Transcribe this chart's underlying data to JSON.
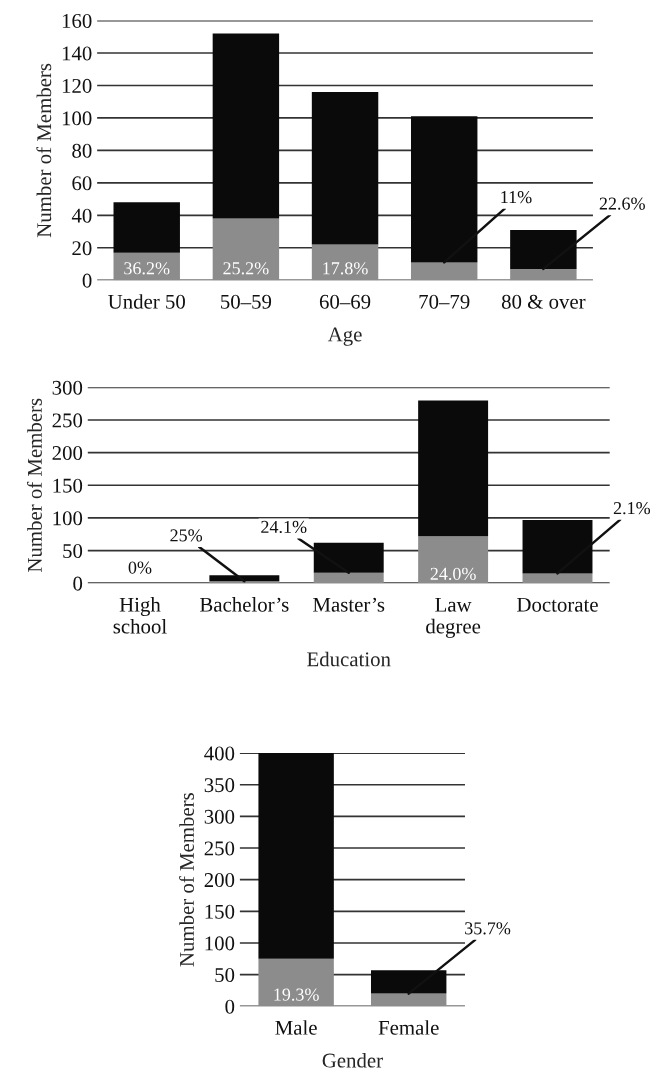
{
  "chart_data": [
    {
      "type": "bar",
      "stacked": true,
      "xlabel": "Age",
      "ylabel": "Number of Members",
      "categories": [
        "Under 50",
        "50–59",
        "60–69",
        "70–79",
        "80 & over"
      ],
      "series": [
        {
          "color": "#8c8c8c",
          "values": [
            17,
            38,
            22,
            11,
            7
          ]
        },
        {
          "color": "#0a0a0a",
          "values": [
            31,
            114,
            94,
            90,
            24
          ]
        }
      ],
      "annotations": [
        {
          "text": "36.2%",
          "x": "Under 50",
          "y": 17
        },
        {
          "text": "25.2%",
          "x": "50–59",
          "y": 38
        },
        {
          "text": "17.8%",
          "x": "60–69",
          "y": 22
        },
        {
          "text": "11%",
          "x": "70–79",
          "y": 11
        },
        {
          "text": "22.6%",
          "x": "80 & over",
          "y": 7
        }
      ],
      "ylim": [
        0,
        160
      ],
      "yticks": [
        0,
        20,
        40,
        60,
        80,
        100,
        120,
        140,
        160
      ],
      "grid": "y",
      "legend": false
    },
    {
      "type": "bar",
      "stacked": true,
      "xlabel": "Education",
      "ylabel": "Number of Members",
      "categories": [
        "High\nschool",
        "Bachelor’s",
        "Master’s",
        "Law\ndegree",
        "Doctorate"
      ],
      "series": [
        {
          "color": "#8c8c8c",
          "values": [
            0,
            3,
            16,
            72,
            15
          ]
        },
        {
          "color": "#0a0a0a",
          "values": [
            0,
            9,
            46,
            208,
            82
          ]
        }
      ],
      "annotations": [
        {
          "text": "0%",
          "x": "High\nschool",
          "y": 0
        },
        {
          "text": "25%",
          "x": "Bachelor’s",
          "y": 3
        },
        {
          "text": "24.1%",
          "x": "Master’s",
          "y": 16
        },
        {
          "text": "24.0%",
          "x": "Law\ndegree",
          "y": 72
        },
        {
          "text": "2.1%",
          "x": "Doctorate",
          "y": 15
        }
      ],
      "ylim": [
        0,
        300
      ],
      "yticks": [
        0,
        50,
        100,
        150,
        200,
        250,
        300
      ],
      "grid": "y",
      "legend": false
    },
    {
      "type": "bar",
      "stacked": true,
      "xlabel": "Gender",
      "ylabel": "Number of Members",
      "categories": [
        "Male",
        "Female"
      ],
      "series": [
        {
          "color": "#8c8c8c",
          "values": [
            75,
            20
          ]
        },
        {
          "color": "#0a0a0a",
          "values": [
            325,
            37
          ]
        }
      ],
      "annotations": [
        {
          "text": "19.3%",
          "x": "Male",
          "y": 75
        },
        {
          "text": "35.7%",
          "x": "Female",
          "y": 20
        }
      ],
      "ylim": [
        0,
        400
      ],
      "yticks": [
        0,
        50,
        100,
        150,
        200,
        250,
        300,
        350,
        400
      ],
      "grid": "y",
      "legend": false
    }
  ]
}
